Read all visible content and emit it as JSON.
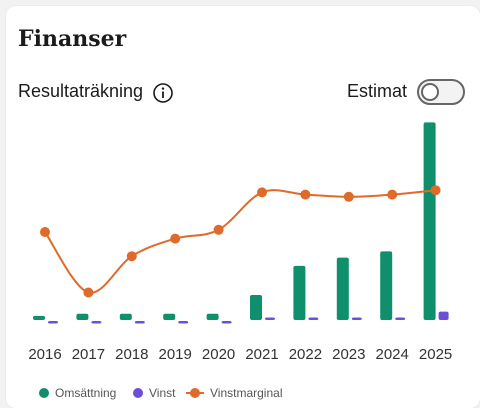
{
  "section_title": "Finanser",
  "subtitle": "Resultaträkning",
  "estimate_toggle": {
    "label": "Estimat",
    "on": false
  },
  "chart_data": {
    "type": "bar",
    "categories": [
      "2016",
      "2017",
      "2018",
      "2019",
      "2020",
      "2021",
      "2022",
      "2023",
      "2024",
      "2025"
    ],
    "series": [
      {
        "name": "Omsättning",
        "type": "bar",
        "color": "#0f8f6b",
        "values": [
          2,
          3,
          3,
          3,
          3,
          12,
          26,
          30,
          33,
          95
        ]
      },
      {
        "name": "Vinst",
        "type": "bar",
        "color": "#6c4fd6",
        "values": [
          -1,
          -1,
          -1,
          -1,
          -1,
          1,
          1,
          1,
          1,
          4
        ]
      },
      {
        "name": "Vinstmarginal",
        "type": "line",
        "color": "#e06a2a",
        "values": [
          -30,
          -85,
          -52,
          -36,
          -28,
          6,
          4,
          2,
          4,
          8
        ]
      }
    ],
    "legend_position": "bottom-left",
    "grid": false
  }
}
